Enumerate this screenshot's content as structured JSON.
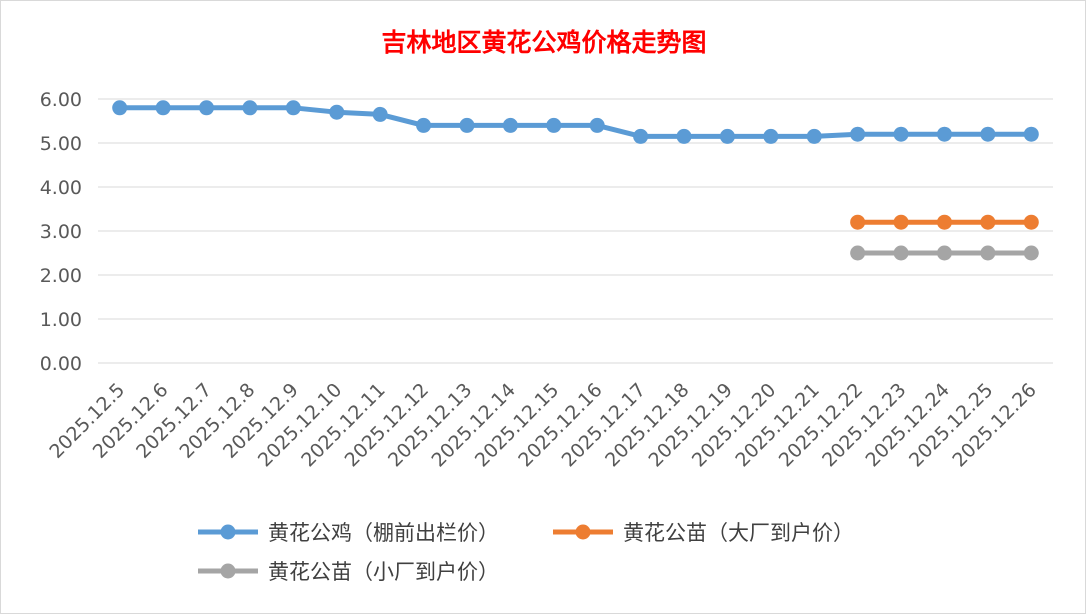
{
  "chart_data": {
    "type": "line",
    "title": "吉林地区黄花公鸡价格走势图",
    "xlabel": "",
    "ylabel": "",
    "ylim": [
      0,
      6
    ],
    "yticks": [
      "0.00",
      "1.00",
      "2.00",
      "3.00",
      "4.00",
      "5.00",
      "6.00"
    ],
    "grid": true,
    "legend_position": "bottom",
    "categories": [
      "2025.12.5",
      "2025.12.6",
      "2025.12.7",
      "2025.12.8",
      "2025.12.9",
      "2025.12.10",
      "2025.12.11",
      "2025.12.12",
      "2025.12.13",
      "2025.12.14",
      "2025.12.15",
      "2025.12.16",
      "2025.12.17",
      "2025.12.18",
      "2025.12.19",
      "2025.12.20",
      "2025.12.21",
      "2025.12.22",
      "2025.12.23",
      "2025.12.24",
      "2025.12.25",
      "2025.12.26"
    ],
    "series": [
      {
        "name": "黄花公鸡（棚前出栏价）",
        "color": "#5b9bd5",
        "values": [
          5.8,
          5.8,
          5.8,
          5.8,
          5.8,
          5.7,
          5.65,
          5.4,
          5.4,
          5.4,
          5.4,
          5.4,
          5.15,
          5.15,
          5.15,
          5.15,
          5.15,
          5.2,
          5.2,
          5.2,
          5.2,
          5.2
        ]
      },
      {
        "name": "黄花公苗（大厂到户价）",
        "color": "#ed7d31",
        "values": [
          null,
          null,
          null,
          null,
          null,
          null,
          null,
          null,
          null,
          null,
          null,
          null,
          null,
          null,
          null,
          null,
          null,
          3.2,
          3.2,
          3.2,
          3.2,
          3.2
        ]
      },
      {
        "name": "黄花公苗（小厂到户价）",
        "color": "#a5a5a5",
        "values": [
          null,
          null,
          null,
          null,
          null,
          null,
          null,
          null,
          null,
          null,
          null,
          null,
          null,
          null,
          null,
          null,
          null,
          2.5,
          2.5,
          2.5,
          2.5,
          2.5
        ]
      }
    ]
  }
}
